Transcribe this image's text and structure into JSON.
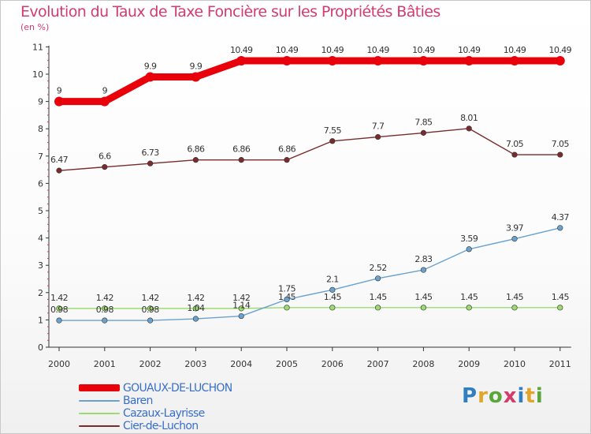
{
  "title": "Evolution du Taux de Taxe Foncière sur les Propriétés Bâties",
  "subtitle": "(en %)",
  "logo": {
    "text": "Proxiti",
    "colors": [
      "#2f7fc1",
      "#e0a52a",
      "#5aa63a",
      "#d33b6c"
    ]
  },
  "chart_data": {
    "type": "line",
    "title": "Evolution du Taux de Taxe Foncière sur les Propriétés Bâties",
    "ylabel": "(en %)",
    "xlabel": "",
    "x": [
      "2000",
      "2001",
      "2002",
      "2003",
      "2004",
      "2005",
      "2006",
      "2007",
      "2008",
      "2009",
      "2010",
      "2011"
    ],
    "ylim": [
      0,
      11
    ],
    "yticks": [
      0,
      1,
      2,
      3,
      4,
      5,
      6,
      7,
      8,
      9,
      10,
      11
    ],
    "grid": false,
    "legend": "bottom-left",
    "series": [
      {
        "name": "GOUAUX-DE-LUCHON",
        "color": "#e8000b",
        "values": [
          9,
          9,
          9.9,
          9.9,
          10.49,
          10.49,
          10.49,
          10.49,
          10.49,
          10.49,
          10.49,
          10.49
        ],
        "labels": [
          "9",
          "9",
          "9.9",
          "9.9",
          "10.49",
          "10.49",
          "10.49",
          "10.49",
          "10.49",
          "10.49",
          "10.49",
          "10.49"
        ]
      },
      {
        "name": "Baren",
        "color": "#6aa2cf",
        "values": [
          0.98,
          0.98,
          0.98,
          1.04,
          1.14,
          1.75,
          2.1,
          2.52,
          2.83,
          3.59,
          3.97,
          4.37
        ],
        "labels": [
          "0.98",
          "0.98",
          "0.98",
          "1.04",
          "1.14",
          "1.75",
          "2.1",
          "2.52",
          "2.83",
          "3.59",
          "3.97",
          "4.37"
        ]
      },
      {
        "name": "Cazaux-Layrisse",
        "color": "#9ddb6e",
        "values": [
          1.42,
          1.42,
          1.42,
          1.42,
          1.42,
          1.45,
          1.45,
          1.45,
          1.45,
          1.45,
          1.45,
          1.45
        ],
        "labels": [
          "1.42",
          "1.42",
          "1.42",
          "1.42",
          "1.42",
          "1.45",
          "1.45",
          "1.45",
          "1.45",
          "1.45",
          "1.45",
          "1.45"
        ]
      },
      {
        "name": "Cier-de-Luchon",
        "color": "#7a2b2b",
        "values": [
          6.47,
          6.6,
          6.73,
          6.86,
          6.86,
          6.86,
          7.55,
          7.7,
          7.85,
          8.01,
          7.05,
          7.05
        ],
        "labels": [
          "6.47",
          "6.6",
          "6.73",
          "6.86",
          "6.86",
          "6.86",
          "7.55",
          "7.7",
          "7.85",
          "8.01",
          "7.05",
          "7.05"
        ]
      }
    ]
  }
}
